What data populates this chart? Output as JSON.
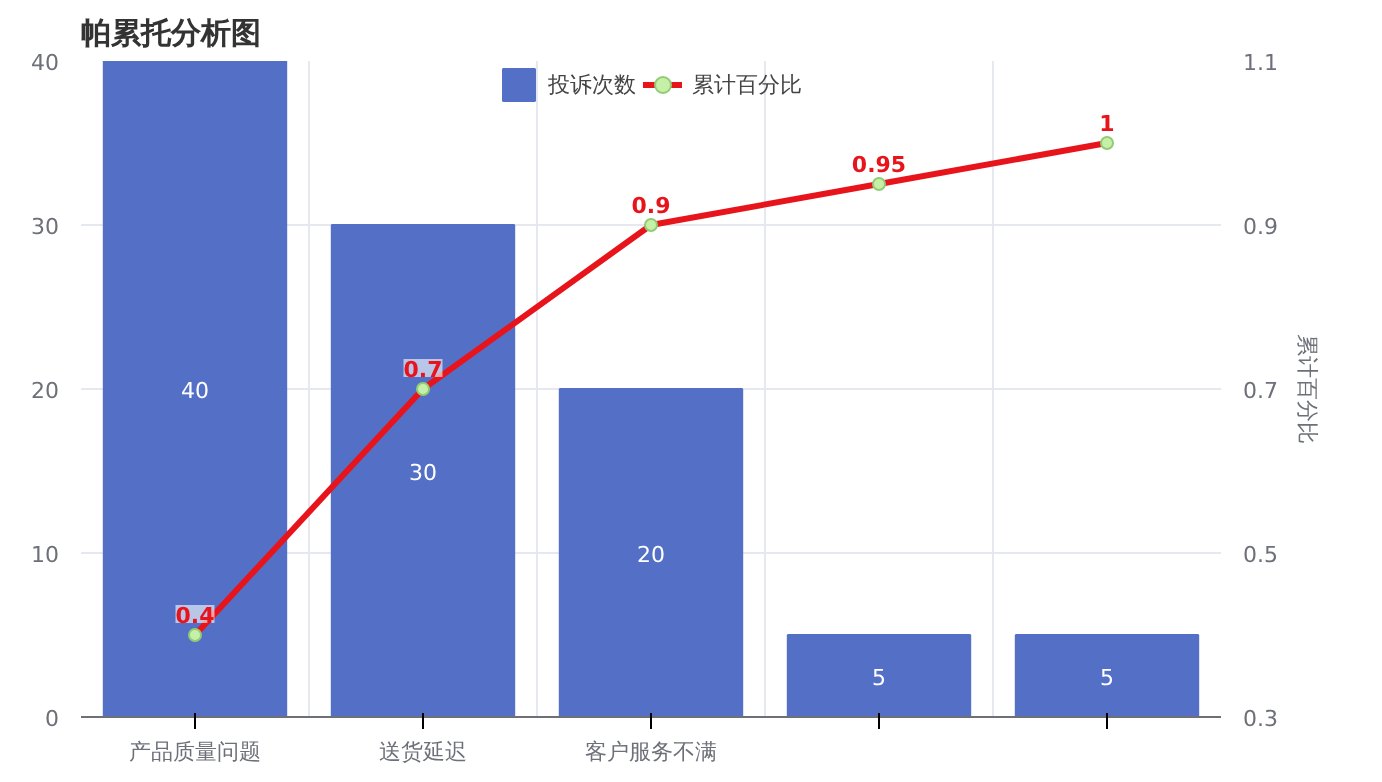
{
  "chart_data": {
    "type": "bar",
    "title": "帕累托分析图",
    "categories": [
      "产品质量问题",
      "送货延迟",
      "客户服务不满",
      null,
      null
    ],
    "series": [
      {
        "name": "投诉次数",
        "color": "#5470c6",
        "values": [
          40,
          30,
          20,
          5,
          5
        ]
      },
      {
        "name": "累计百分比",
        "type": "line",
        "axis": "y2",
        "color": "#e8141b",
        "values": [
          0.4,
          0.7,
          0.9,
          0.95,
          1
        ]
      }
    ],
    "ylim": [
      0,
      40
    ],
    "yticks": [
      0,
      10,
      20,
      30,
      40
    ],
    "y2lim": [
      0.3,
      1.1
    ],
    "y2ticks": [
      0.3,
      0.5,
      0.7,
      0.9,
      1.1
    ],
    "y2label": "累计百分比",
    "data_labels": true,
    "grid": true,
    "legend": "top",
    "marker": "circle",
    "line_style": "solid"
  }
}
